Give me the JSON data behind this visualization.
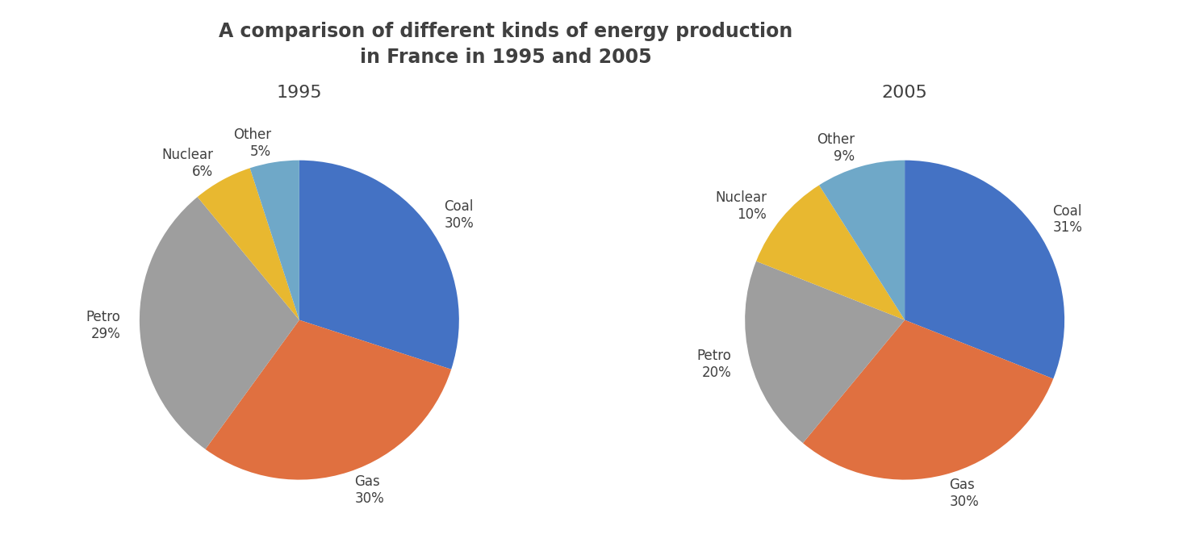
{
  "title": "A comparison of different kinds of energy production\nin France in 1995 and 2005",
  "title_fontsize": 17,
  "title_fontweight": "bold",
  "background_color": "#ffffff",
  "chart1_year": "1995",
  "chart1_labels": [
    "Coal",
    "Gas",
    "Petro",
    "Nuclear",
    "Other"
  ],
  "chart1_values": [
    30,
    30,
    29,
    6,
    5
  ],
  "chart1_colors": [
    "#4472c4",
    "#e07040",
    "#9e9e9e",
    "#e8b830",
    "#6fa8c8"
  ],
  "chart2_year": "2005",
  "chart2_labels": [
    "Coal",
    "Gas",
    "Petro",
    "Nuclear",
    "Other"
  ],
  "chart2_values": [
    31,
    30,
    20,
    10,
    9
  ],
  "chart2_colors": [
    "#4472c4",
    "#e07040",
    "#9e9e9e",
    "#e8b830",
    "#6fa8c8"
  ],
  "label_fontsize": 12,
  "year_fontsize": 16,
  "text_color": "#404040",
  "startangle": 90
}
